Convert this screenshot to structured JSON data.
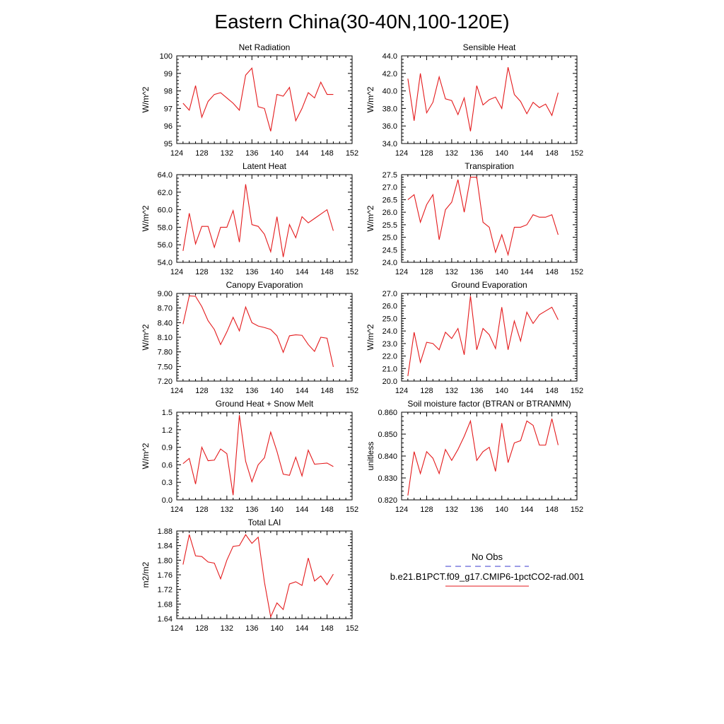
{
  "figure_title": "Eastern China(30-40N,100-120E)",
  "legend": {
    "items": [
      {
        "label": "No Obs",
        "color": "#3a3acc",
        "dash": "8,6"
      },
      {
        "label": "b.e21.B1PCT.f09_g17.CMIP6-1pctCO2-rad.001",
        "color": "#e41a1c",
        "dash": ""
      }
    ]
  },
  "chart_data": [
    {
      "type": "line",
      "title": "Net Radiation",
      "ylabel": "W/m^2",
      "xlim": [
        124,
        152
      ],
      "ylim": [
        95,
        100
      ],
      "xticks": [
        "124",
        "128",
        "132",
        "136",
        "140",
        "144",
        "148",
        "152"
      ],
      "yticks": [
        "95",
        "96",
        "97",
        "98",
        "99",
        "100"
      ],
      "x": [
        125,
        126,
        127,
        128,
        129,
        130,
        131,
        132,
        133,
        134,
        135,
        136,
        137,
        138,
        139,
        140,
        141,
        142,
        143,
        144,
        145,
        146,
        147,
        148,
        149
      ],
      "series": [
        {
          "name": "b.e21.B1PCT.f09_g17.CMIP6-1pctCO2-rad.001",
          "color": "#e41a1c",
          "values": [
            97.3,
            96.9,
            98.3,
            96.5,
            97.4,
            97.8,
            97.9,
            97.6,
            97.3,
            96.9,
            98.9,
            99.3,
            97.1,
            97.0,
            95.7,
            97.8,
            97.7,
            98.2,
            96.3,
            97.0,
            97.9,
            97.6,
            98.5,
            97.8,
            97.8
          ]
        }
      ]
    },
    {
      "type": "line",
      "title": "Sensible Heat",
      "ylabel": "W/m^2",
      "xlim": [
        124,
        152
      ],
      "ylim": [
        34.0,
        44.0
      ],
      "xticks": [
        "124",
        "128",
        "132",
        "136",
        "140",
        "144",
        "148",
        "152"
      ],
      "yticks": [
        "34.0",
        "36.0",
        "38.0",
        "40.0",
        "42.0",
        "44.0"
      ],
      "x": [
        125,
        126,
        127,
        128,
        129,
        130,
        131,
        132,
        133,
        134,
        135,
        136,
        137,
        138,
        139,
        140,
        141,
        142,
        143,
        144,
        145,
        146,
        147,
        148,
        149
      ],
      "series": [
        {
          "name": "b.e21.B1PCT.f09_g17.CMIP6-1pctCO2-rad.001",
          "color": "#e41a1c",
          "values": [
            41.4,
            36.6,
            42.0,
            37.5,
            38.7,
            41.6,
            39.1,
            38.9,
            37.3,
            39.2,
            35.4,
            40.6,
            38.4,
            39.0,
            39.3,
            38.0,
            42.7,
            39.6,
            38.8,
            37.4,
            38.7,
            38.1,
            38.5,
            37.2,
            39.8
          ]
        }
      ]
    },
    {
      "type": "line",
      "title": "Latent Heat",
      "ylabel": "W/m^2",
      "xlim": [
        124,
        152
      ],
      "ylim": [
        54.0,
        64.0
      ],
      "xticks": [
        "124",
        "128",
        "132",
        "136",
        "140",
        "144",
        "148",
        "152"
      ],
      "yticks": [
        "54.0",
        "56.0",
        "58.0",
        "60.0",
        "62.0",
        "64.0"
      ],
      "x": [
        125,
        126,
        127,
        128,
        129,
        130,
        131,
        132,
        133,
        134,
        135,
        136,
        137,
        138,
        139,
        140,
        141,
        142,
        143,
        144,
        145,
        146,
        147,
        148,
        149
      ],
      "series": [
        {
          "name": "b.e21.B1PCT.f09_g17.CMIP6-1pctCO2-rad.001",
          "color": "#e41a1c",
          "values": [
            55.3,
            59.6,
            56.1,
            58.1,
            58.1,
            55.7,
            58.0,
            58.0,
            59.9,
            56.3,
            62.9,
            58.3,
            58.1,
            57.2,
            55.2,
            59.2,
            54.6,
            58.3,
            56.8,
            59.2,
            58.5,
            59.0,
            59.5,
            60.0,
            57.6
          ]
        }
      ]
    },
    {
      "type": "line",
      "title": "Transpiration",
      "ylabel": "W/m^2",
      "xlim": [
        124,
        152
      ],
      "ylim": [
        24.0,
        27.5
      ],
      "xticks": [
        "124",
        "128",
        "132",
        "136",
        "140",
        "144",
        "148",
        "152"
      ],
      "yticks": [
        "24.0",
        "24.5",
        "25.0",
        "25.5",
        "26.0",
        "26.5",
        "27.0",
        "27.5"
      ],
      "x": [
        125,
        126,
        127,
        128,
        129,
        130,
        131,
        132,
        133,
        134,
        135,
        136,
        137,
        138,
        139,
        140,
        141,
        142,
        143,
        144,
        145,
        146,
        147,
        148,
        149
      ],
      "series": [
        {
          "name": "b.e21.B1PCT.f09_g17.CMIP6-1pctCO2-rad.001",
          "color": "#e41a1c",
          "values": [
            26.5,
            26.7,
            25.6,
            26.3,
            26.7,
            24.9,
            26.1,
            26.4,
            27.3,
            26.0,
            27.4,
            27.4,
            25.6,
            25.4,
            24.4,
            25.1,
            24.3,
            25.4,
            25.4,
            25.5,
            25.9,
            25.8,
            25.8,
            25.9,
            25.1
          ]
        }
      ]
    },
    {
      "type": "line",
      "title": "Canopy Evaporation",
      "ylabel": "W/m^2",
      "xlim": [
        124,
        152
      ],
      "ylim": [
        7.2,
        9.0
      ],
      "xticks": [
        "124",
        "128",
        "132",
        "136",
        "140",
        "144",
        "148",
        "152"
      ],
      "yticks": [
        "7.20",
        "7.50",
        "7.80",
        "8.10",
        "8.40",
        "8.70",
        "9.00"
      ],
      "x": [
        125,
        126,
        127,
        128,
        129,
        130,
        131,
        132,
        133,
        134,
        135,
        136,
        137,
        138,
        139,
        140,
        141,
        142,
        143,
        144,
        145,
        146,
        147,
        148,
        149
      ],
      "series": [
        {
          "name": "b.e21.B1PCT.f09_g17.CMIP6-1pctCO2-rad.001",
          "color": "#e41a1c",
          "values": [
            8.37,
            8.95,
            8.94,
            8.73,
            8.44,
            8.26,
            7.95,
            8.21,
            8.51,
            8.23,
            8.72,
            8.4,
            8.33,
            8.3,
            8.26,
            8.13,
            7.79,
            8.13,
            8.15,
            8.14,
            7.95,
            7.81,
            8.1,
            8.08,
            7.49
          ]
        }
      ]
    },
    {
      "type": "line",
      "title": "Ground Evaporation",
      "ylabel": "W/m^2",
      "xlim": [
        124,
        152
      ],
      "ylim": [
        20.0,
        27.0
      ],
      "xticks": [
        "124",
        "128",
        "132",
        "136",
        "140",
        "144",
        "148",
        "152"
      ],
      "yticks": [
        "20.0",
        "21.0",
        "22.0",
        "23.0",
        "24.0",
        "25.0",
        "26.0",
        "27.0"
      ],
      "x": [
        125,
        126,
        127,
        128,
        129,
        130,
        131,
        132,
        133,
        134,
        135,
        136,
        137,
        138,
        139,
        140,
        141,
        142,
        143,
        144,
        145,
        146,
        147,
        148,
        149
      ],
      "series": [
        {
          "name": "b.e21.B1PCT.f09_g17.CMIP6-1pctCO2-rad.001",
          "color": "#e41a1c",
          "values": [
            20.4,
            23.9,
            21.5,
            23.1,
            23.0,
            22.5,
            23.9,
            23.4,
            24.2,
            22.1,
            26.8,
            22.5,
            24.2,
            23.7,
            22.6,
            25.9,
            22.5,
            24.8,
            23.2,
            25.5,
            24.6,
            25.3,
            25.6,
            25.9,
            24.9
          ]
        }
      ]
    },
    {
      "type": "line",
      "title": "Ground Heat + Snow Melt",
      "ylabel": "W/m^2",
      "xlim": [
        124,
        152
      ],
      "ylim": [
        0.0,
        1.5
      ],
      "xticks": [
        "124",
        "128",
        "132",
        "136",
        "140",
        "144",
        "148",
        "152"
      ],
      "yticks": [
        "0.0",
        "0.3",
        "0.6",
        "0.9",
        "1.2",
        "1.5"
      ],
      "x": [
        125,
        126,
        127,
        128,
        129,
        130,
        131,
        132,
        133,
        134,
        135,
        136,
        137,
        138,
        139,
        140,
        141,
        142,
        143,
        144,
        145,
        146,
        147,
        148,
        149
      ],
      "series": [
        {
          "name": "b.e21.B1PCT.f09_g17.CMIP6-1pctCO2-rad.001",
          "color": "#e41a1c",
          "values": [
            0.62,
            0.71,
            0.27,
            0.9,
            0.67,
            0.68,
            0.87,
            0.79,
            0.08,
            1.45,
            0.66,
            0.31,
            0.6,
            0.72,
            1.16,
            0.83,
            0.44,
            0.42,
            0.73,
            0.41,
            0.85,
            0.61,
            0.62,
            0.63,
            0.57
          ]
        }
      ]
    },
    {
      "type": "line",
      "title": "Soil moisture factor (BTRAN or BTRANMN)",
      "ylabel": "unitless",
      "xlim": [
        124,
        152
      ],
      "ylim": [
        0.82,
        0.86
      ],
      "xticks": [
        "124",
        "128",
        "132",
        "136",
        "140",
        "144",
        "148",
        "152"
      ],
      "yticks": [
        "0.820",
        "0.830",
        "0.840",
        "0.850",
        "0.860"
      ],
      "x": [
        125,
        126,
        127,
        128,
        129,
        130,
        131,
        132,
        133,
        134,
        135,
        136,
        137,
        138,
        139,
        140,
        141,
        142,
        143,
        144,
        145,
        146,
        147,
        148,
        149
      ],
      "series": [
        {
          "name": "b.e21.B1PCT.f09_g17.CMIP6-1pctCO2-rad.001",
          "color": "#e41a1c",
          "values": [
            0.822,
            0.842,
            0.832,
            0.842,
            0.839,
            0.832,
            0.843,
            0.838,
            0.843,
            0.849,
            0.856,
            0.838,
            0.842,
            0.844,
            0.833,
            0.855,
            0.837,
            0.846,
            0.847,
            0.856,
            0.854,
            0.845,
            0.845,
            0.857,
            0.845
          ]
        }
      ]
    },
    {
      "type": "line",
      "title": "Total LAI",
      "ylabel": "m2/m2",
      "xlim": [
        124,
        152
      ],
      "ylim": [
        1.64,
        1.88
      ],
      "xticks": [
        "124",
        "128",
        "132",
        "136",
        "140",
        "144",
        "148",
        "152"
      ],
      "yticks": [
        "1.64",
        "1.68",
        "1.72",
        "1.76",
        "1.80",
        "1.84",
        "1.88"
      ],
      "x": [
        125,
        126,
        127,
        128,
        129,
        130,
        131,
        132,
        133,
        134,
        135,
        136,
        137,
        138,
        139,
        140,
        141,
        142,
        143,
        144,
        145,
        146,
        147,
        148,
        149
      ],
      "series": [
        {
          "name": "b.e21.B1PCT.f09_g17.CMIP6-1pctCO2-rad.001",
          "color": "#e41a1c",
          "values": [
            1.788,
            1.87,
            1.812,
            1.81,
            1.795,
            1.792,
            1.749,
            1.8,
            1.838,
            1.84,
            1.87,
            1.846,
            1.863,
            1.74,
            1.645,
            1.683,
            1.665,
            1.735,
            1.741,
            1.731,
            1.806,
            1.743,
            1.757,
            1.733,
            1.762
          ]
        }
      ]
    }
  ]
}
